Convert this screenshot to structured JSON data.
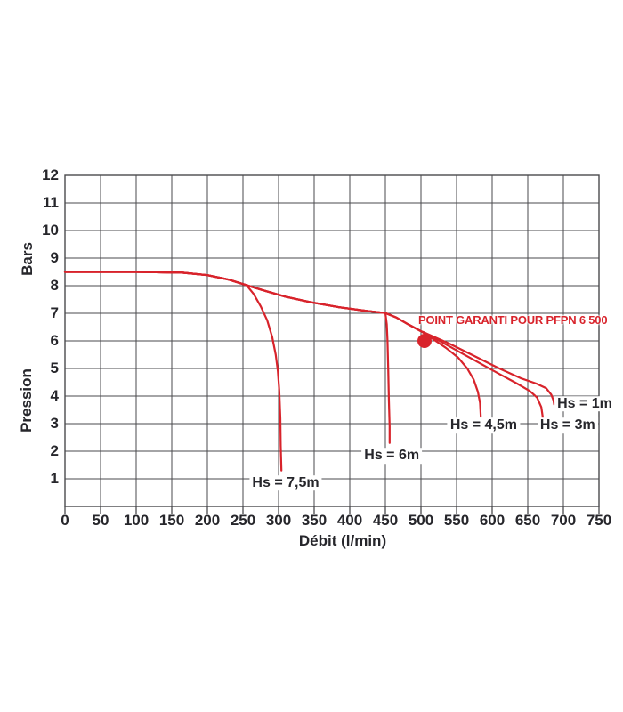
{
  "page": {
    "background": "#ffffff"
  },
  "chart_data": {
    "type": "line",
    "title": "",
    "xlabel": "Débit (l/min)",
    "ylabel_upper": "Bars",
    "ylabel_lower": "Pression",
    "xlim": [
      0,
      750
    ],
    "ylim": [
      0,
      12
    ],
    "xticks": [
      0,
      50,
      100,
      150,
      200,
      250,
      300,
      350,
      400,
      450,
      500,
      550,
      600,
      650,
      700,
      750
    ],
    "yticks": [
      1,
      2,
      3,
      4,
      5,
      6,
      7,
      8,
      9,
      10,
      11,
      12
    ],
    "grid": true,
    "legend_position": "inline-curve-labels",
    "colors": {
      "curve": "#d8232b",
      "grid": "#4a4a4d",
      "text": "#26262b",
      "background": "#ffffff"
    },
    "annotation": {
      "text": "POINT GARANTI POUR PFPN 6 500"
    },
    "guaranteed_point": {
      "debit_l_min": 500,
      "pression_bars": 6
    },
    "series": [
      {
        "name": "Hs = 7,5m",
        "points": [
          [
            0,
            8.5
          ],
          [
            100,
            8.5
          ],
          [
            165,
            8.47
          ],
          [
            200,
            8.38
          ],
          [
            230,
            8.22
          ],
          [
            255,
            8.02
          ],
          [
            265,
            7.7
          ],
          [
            275,
            7.25
          ],
          [
            284,
            6.75
          ],
          [
            291,
            6.15
          ],
          [
            296,
            5.5
          ],
          [
            299,
            4.9
          ],
          [
            301,
            4.2
          ],
          [
            302.5,
            3.2
          ],
          [
            303,
            2.2
          ],
          [
            304,
            1.3
          ]
        ]
      },
      {
        "name": "Hs = 6m",
        "points": [
          [
            0,
            8.5
          ],
          [
            100,
            8.5
          ],
          [
            165,
            8.47
          ],
          [
            200,
            8.38
          ],
          [
            230,
            8.22
          ],
          [
            255,
            8.02
          ],
          [
            280,
            7.82
          ],
          [
            310,
            7.6
          ],
          [
            345,
            7.4
          ],
          [
            385,
            7.22
          ],
          [
            425,
            7.08
          ],
          [
            450,
            7.01
          ],
          [
            452,
            6.6
          ],
          [
            453,
            6.0
          ],
          [
            454,
            5.0
          ],
          [
            455,
            3.8
          ],
          [
            456,
            2.9
          ],
          [
            456,
            2.3
          ]
        ]
      },
      {
        "name": "Hs = 4,5m",
        "points": [
          [
            0,
            8.5
          ],
          [
            100,
            8.5
          ],
          [
            165,
            8.47
          ],
          [
            200,
            8.38
          ],
          [
            230,
            8.22
          ],
          [
            255,
            8.02
          ],
          [
            280,
            7.82
          ],
          [
            310,
            7.6
          ],
          [
            345,
            7.4
          ],
          [
            385,
            7.22
          ],
          [
            425,
            7.08
          ],
          [
            450,
            7.01
          ],
          [
            465,
            6.85
          ],
          [
            482,
            6.6
          ],
          [
            500,
            6.35
          ],
          [
            515,
            6.1
          ],
          [
            535,
            5.75
          ],
          [
            552,
            5.4
          ],
          [
            565,
            5.0
          ],
          [
            574,
            4.6
          ],
          [
            580,
            4.15
          ],
          [
            583,
            3.75
          ],
          [
            584,
            3.25
          ]
        ]
      },
      {
        "name": "Hs = 3m",
        "points": [
          [
            0,
            8.5
          ],
          [
            100,
            8.5
          ],
          [
            165,
            8.47
          ],
          [
            200,
            8.38
          ],
          [
            230,
            8.22
          ],
          [
            255,
            8.02
          ],
          [
            280,
            7.82
          ],
          [
            310,
            7.6
          ],
          [
            345,
            7.4
          ],
          [
            385,
            7.22
          ],
          [
            425,
            7.08
          ],
          [
            450,
            7.01
          ],
          [
            465,
            6.85
          ],
          [
            482,
            6.6
          ],
          [
            500,
            6.35
          ],
          [
            505,
            6.3
          ],
          [
            540,
            5.8
          ],
          [
            575,
            5.3
          ],
          [
            610,
            4.8
          ],
          [
            635,
            4.45
          ],
          [
            653,
            4.18
          ],
          [
            663,
            3.95
          ],
          [
            669,
            3.6
          ],
          [
            671,
            3.25
          ],
          [
            671,
            3.1
          ]
        ]
      },
      {
        "name": "Hs = 1m",
        "points": [
          [
            0,
            8.5
          ],
          [
            100,
            8.5
          ],
          [
            165,
            8.47
          ],
          [
            200,
            8.38
          ],
          [
            230,
            8.22
          ],
          [
            255,
            8.02
          ],
          [
            280,
            7.82
          ],
          [
            310,
            7.6
          ],
          [
            345,
            7.4
          ],
          [
            385,
            7.22
          ],
          [
            425,
            7.08
          ],
          [
            450,
            7.01
          ],
          [
            465,
            6.85
          ],
          [
            482,
            6.6
          ],
          [
            500,
            6.35
          ],
          [
            505,
            6.3
          ],
          [
            540,
            5.9
          ],
          [
            575,
            5.45
          ],
          [
            610,
            5.0
          ],
          [
            640,
            4.65
          ],
          [
            662,
            4.45
          ],
          [
            676,
            4.28
          ],
          [
            683,
            4.05
          ],
          [
            686,
            3.85
          ],
          [
            687,
            3.7
          ]
        ]
      }
    ],
    "curve_labels": [
      {
        "text": "Hs = 7,5m",
        "x": 310,
        "y": 0.85
      },
      {
        "text": "Hs = 6m",
        "x": 459,
        "y": 1.83
      },
      {
        "text": "Hs = 4,5m",
        "x": 588,
        "y": 2.93
      },
      {
        "text": "Hs = 3m",
        "x": 706,
        "y": 2.93
      },
      {
        "text": "Hs = 1m",
        "x": 730,
        "y": 3.72
      }
    ]
  }
}
